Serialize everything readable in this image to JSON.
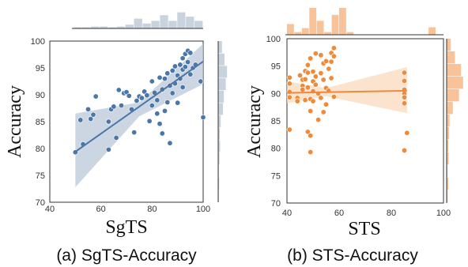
{
  "chart_data": [
    {
      "type": "scatter",
      "caption": "(a) SgTS-Accuracy",
      "xlabel": "SgTS",
      "ylabel": "Accuracy",
      "xlim": [
        40,
        100
      ],
      "ylim": [
        70,
        100
      ],
      "xticks": [
        40,
        60,
        80,
        100
      ],
      "yticks": [
        70,
        75,
        80,
        85,
        90,
        95,
        100
      ],
      "color": "#4a76a8",
      "fit_line": {
        "x": [
          50,
          100
        ],
        "y": [
          79.4,
          96.2
        ]
      },
      "ci_band": {
        "x": [
          50,
          75,
          100
        ],
        "upper": [
          86.5,
          88.6,
          99.5
        ],
        "lower": [
          72.8,
          86.0,
          92.0
        ]
      },
      "points": [
        [
          50,
          79.3
        ],
        [
          52,
          85.3
        ],
        [
          53,
          80.8
        ],
        [
          55,
          87.3
        ],
        [
          56,
          85.5
        ],
        [
          57,
          86.3
        ],
        [
          58,
          89.7
        ],
        [
          63,
          79.8
        ],
        [
          63,
          85.0
        ],
        [
          64,
          87.3
        ],
        [
          65,
          87.8
        ],
        [
          66,
          82.0
        ],
        [
          67,
          90.9
        ],
        [
          68,
          88.0
        ],
        [
          69,
          90.3
        ],
        [
          70,
          90.5
        ],
        [
          71,
          89.8
        ],
        [
          72,
          87.3
        ],
        [
          73,
          83.0
        ],
        [
          74,
          88.9
        ],
        [
          75,
          89.7
        ],
        [
          76,
          89.4
        ],
        [
          77,
          90.6
        ],
        [
          78,
          89.9
        ],
        [
          79,
          85.1
        ],
        [
          80,
          88.0
        ],
        [
          80,
          92.5
        ],
        [
          81,
          90.4
        ],
        [
          82,
          86.5
        ],
        [
          82,
          89.0
        ],
        [
          83,
          93.2
        ],
        [
          83,
          84.6
        ],
        [
          84,
          91.0
        ],
        [
          84,
          82.8
        ],
        [
          85,
          93.0
        ],
        [
          85,
          87.0
        ],
        [
          86,
          88.6
        ],
        [
          86,
          94.0
        ],
        [
          87,
          81.0
        ],
        [
          87,
          91.7
        ],
        [
          88,
          94.5
        ],
        [
          88,
          90.3
        ],
        [
          89,
          95.3
        ],
        [
          89,
          92.1
        ],
        [
          90,
          93.6
        ],
        [
          90,
          88.5
        ],
        [
          91,
          95.6
        ],
        [
          91,
          93.0
        ],
        [
          92,
          96.8
        ],
        [
          92,
          94.7
        ],
        [
          92,
          91.4
        ],
        [
          93,
          97.6
        ],
        [
          93,
          95.2
        ],
        [
          94,
          98.2
        ],
        [
          94,
          96.1
        ],
        [
          95,
          97.8
        ],
        [
          95,
          93.8
        ],
        [
          96,
          95.0
        ],
        [
          97,
          95.6
        ],
        [
          99,
          92.5
        ],
        [
          100,
          85.8
        ]
      ],
      "top_hist": [
        0.06,
        0.06,
        0.1,
        0.1,
        0.06,
        0.1,
        0.2,
        0.52,
        0.26,
        0.4,
        0.7,
        0.4,
        0.85,
        0.62,
        0.4
      ],
      "right_hist": [
        0.04,
        0.06,
        0.04,
        0.08,
        0.12,
        0.1,
        0.16,
        0.3,
        0.36,
        0.48,
        0.56,
        0.4,
        0.24
      ]
    },
    {
      "type": "scatter",
      "caption": "(b) STS-Accuracy",
      "xlabel": "STS",
      "ylabel": "Accuracy",
      "xlim": [
        40,
        100
      ],
      "ylim": [
        70,
        100
      ],
      "xticks": [
        40,
        60,
        80,
        100
      ],
      "yticks": [
        70,
        75,
        80,
        85,
        90,
        95,
        100
      ],
      "color": "#ee8a3a",
      "fit_line": {
        "x": [
          40,
          86
        ],
        "y": [
          90.1,
          90.5
        ]
      },
      "ci_band": {
        "x": [
          40,
          55,
          86
        ],
        "upper": [
          92.2,
          91.0,
          94.8
        ],
        "lower": [
          88.2,
          89.5,
          86.4
        ]
      },
      "points": [
        [
          41,
          92.9
        ],
        [
          41,
          91.8
        ],
        [
          41,
          90.3
        ],
        [
          41,
          89.3
        ],
        [
          41,
          83.4
        ],
        [
          44,
          89.2
        ],
        [
          44,
          88.6
        ],
        [
          45,
          93.3
        ],
        [
          46,
          92.5
        ],
        [
          46,
          91.4
        ],
        [
          46,
          90.7
        ],
        [
          47,
          94.1
        ],
        [
          47,
          92.6
        ],
        [
          47,
          88.8
        ],
        [
          48,
          95.2
        ],
        [
          48,
          93.8
        ],
        [
          48,
          91.1
        ],
        [
          48,
          83.0
        ],
        [
          49,
          96.4
        ],
        [
          49,
          89.0
        ],
        [
          49,
          86.8
        ],
        [
          49,
          82.3
        ],
        [
          49,
          79.3
        ],
        [
          50,
          94.0
        ],
        [
          50,
          92.2
        ],
        [
          50,
          90.4
        ],
        [
          50,
          88.6
        ],
        [
          51,
          97.3
        ],
        [
          51,
          93.1
        ],
        [
          51,
          91.6
        ],
        [
          52,
          90.0
        ],
        [
          52,
          85.2
        ],
        [
          53,
          97.0
        ],
        [
          53,
          93.7
        ],
        [
          53,
          89.2
        ],
        [
          54,
          95.5
        ],
        [
          54,
          92.5
        ],
        [
          54,
          86.6
        ],
        [
          55,
          95.9
        ],
        [
          55,
          91.0
        ],
        [
          55,
          88.0
        ],
        [
          56,
          94.5
        ],
        [
          56,
          90.5
        ],
        [
          57,
          97.4
        ],
        [
          57,
          95.8
        ],
        [
          57,
          92.8
        ],
        [
          58,
          98.3
        ],
        [
          58,
          96.8
        ],
        [
          58,
          89.4
        ],
        [
          85,
          93.8
        ],
        [
          85,
          92.3
        ],
        [
          85,
          90.7
        ],
        [
          85,
          90.0
        ],
        [
          85,
          89.3
        ],
        [
          85,
          88.2
        ],
        [
          86,
          82.8
        ],
        [
          85,
          79.6
        ]
      ],
      "top_hist": [
        0.4,
        0.1,
        0.25,
        1.0,
        0.52,
        0.1,
        0.74,
        1.0,
        0.1,
        0.0,
        0.0,
        0.0,
        0.0,
        0.0,
        0.0,
        0.0,
        0.0,
        0.0,
        0.0,
        0.28,
        0.0
      ],
      "right_hist": [
        0.05,
        0.08,
        0.04,
        0.1,
        0.08,
        0.12,
        0.14,
        0.3,
        0.6,
        0.8,
        0.7,
        0.4,
        0.2
      ]
    }
  ]
}
